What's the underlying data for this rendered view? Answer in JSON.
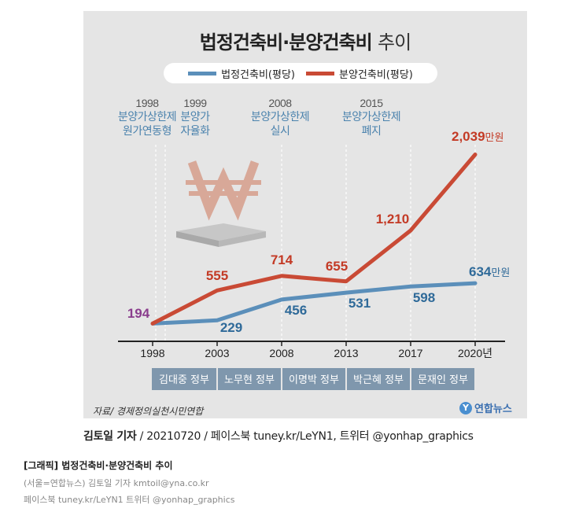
{
  "title": {
    "main": "법정건축비·분양건축비",
    "suffix": "추이"
  },
  "legend": [
    {
      "label": "법정건축비(평당)",
      "color": "#5b8fba"
    },
    {
      "label": "분양건축비(평당)",
      "color": "#c94a35"
    }
  ],
  "events": [
    {
      "year": "1998",
      "text": [
        "분양가상한제",
        "원가연동형"
      ]
    },
    {
      "year": "1999",
      "text": [
        "분양가",
        "자율화"
      ]
    },
    {
      "year": "2008",
      "text": [
        "분양가상한제",
        "실시"
      ]
    },
    {
      "year": "2015",
      "text": [
        "분양가상한제",
        "폐지"
      ]
    }
  ],
  "chart_data": {
    "type": "line",
    "x": [
      "1998",
      "2003",
      "2008",
      "2013",
      "2017",
      "2020년"
    ],
    "series": [
      {
        "name": "법정건축비(평당)",
        "color": "#5b8fba",
        "values": [
          194,
          229,
          456,
          531,
          598,
          634
        ]
      },
      {
        "name": "분양건축비(평당)",
        "color": "#c94a35",
        "values": [
          194,
          555,
          714,
          655,
          1210,
          2039
        ]
      }
    ],
    "value_labels": {
      "shared_start": "194",
      "legal": [
        "229",
        "456",
        "531",
        "598",
        "634"
      ],
      "sale": [
        "555",
        "714",
        "655",
        "1,210",
        "2,039"
      ],
      "unit": "만원"
    },
    "ylim": [
      0,
      2200
    ],
    "grid": false
  },
  "governments": [
    "김대중 정부",
    "노무현 정부",
    "이명박 정부",
    "박근혜 정부",
    "문재인 정부"
  ],
  "source": "자료/ 경제정의실천시민연합",
  "logo": "연합뉴스",
  "credit": {
    "name": "김토일 기자",
    "rest": " / 20210720 / 페이스북 tuney.kr/LeYN1, 트위터 @yonhap_graphics"
  },
  "caption": {
    "title": "[그래픽] 법정건축비·분양건축비 추이",
    "line1": "(서울=연합뉴스) 김토일 기자 kmtoil@yna.co.kr",
    "line2": "페이스북 tuney.kr/LeYN1 트위터 @yonhap_graphics"
  }
}
